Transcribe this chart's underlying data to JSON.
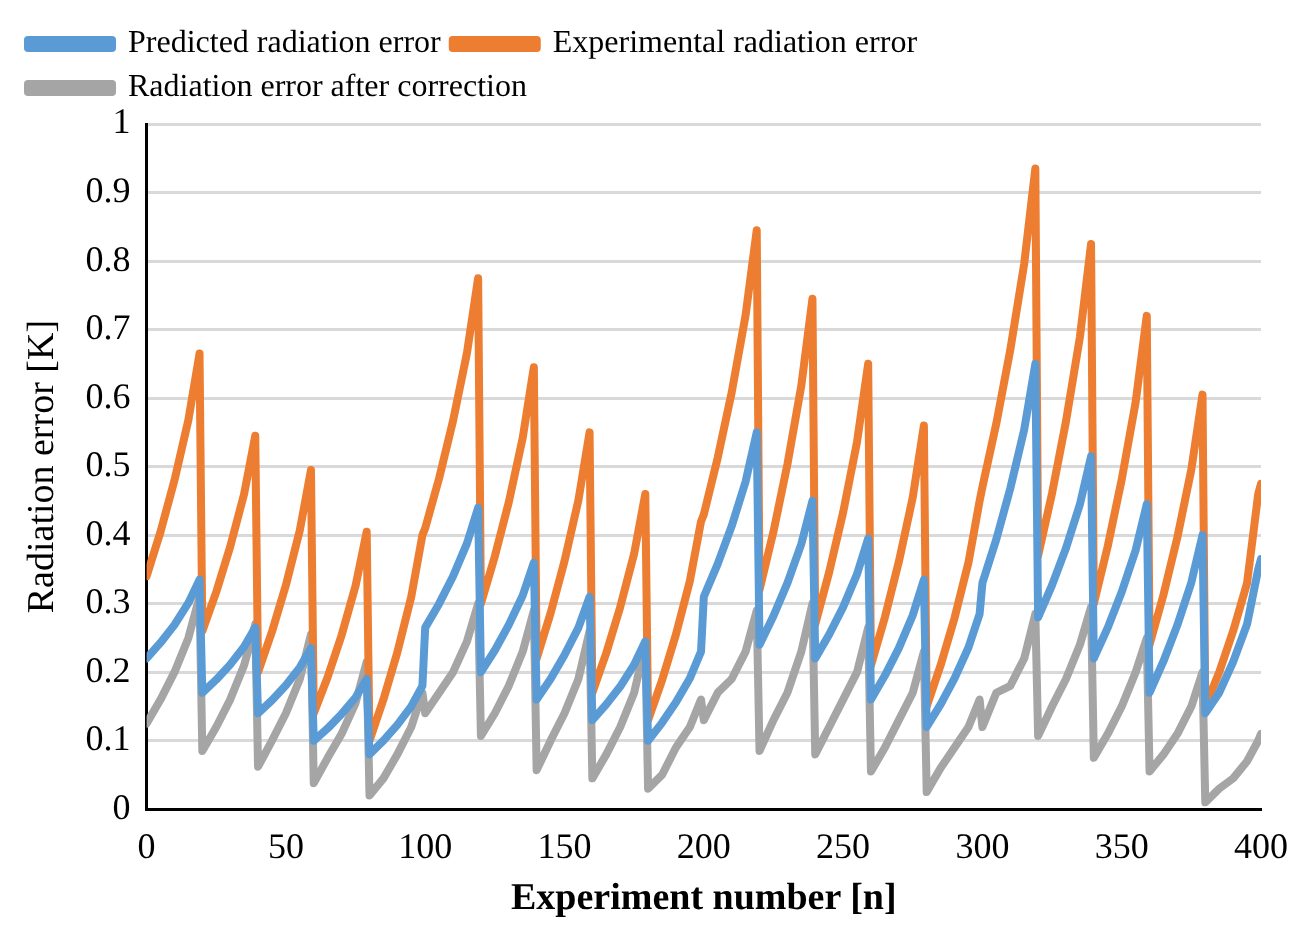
{
  "chart_data": {
    "type": "line",
    "xlabel": "Experiment number [n]",
    "ylabel": "Radiation error [K]",
    "x": [
      0,
      5,
      10,
      15,
      19,
      20,
      25,
      30,
      35,
      39,
      40,
      45,
      50,
      55,
      59,
      60,
      65,
      70,
      75,
      79,
      80,
      85,
      90,
      95,
      99,
      100,
      105,
      110,
      115,
      119,
      120,
      125,
      130,
      135,
      139,
      140,
      145,
      150,
      155,
      159,
      160,
      165,
      170,
      175,
      179,
      180,
      185,
      190,
      195,
      199,
      200,
      205,
      210,
      215,
      219,
      220,
      225,
      230,
      235,
      239,
      240,
      245,
      250,
      255,
      259,
      260,
      265,
      270,
      275,
      279,
      280,
      285,
      290,
      295,
      299,
      300,
      305,
      310,
      315,
      319,
      320,
      325,
      330,
      335,
      339,
      340,
      345,
      350,
      355,
      359,
      360,
      365,
      370,
      375,
      379,
      380,
      385,
      390,
      395,
      399,
      400
    ],
    "series": [
      {
        "name": "Predicted radiation error",
        "color": "#5b9bd5",
        "values": [
          0.22,
          0.243,
          0.269,
          0.301,
          0.335,
          0.17,
          0.189,
          0.211,
          0.237,
          0.265,
          0.14,
          0.159,
          0.181,
          0.207,
          0.235,
          0.1,
          0.118,
          0.139,
          0.163,
          0.19,
          0.08,
          0.1,
          0.123,
          0.15,
          0.18,
          0.265,
          0.3,
          0.34,
          0.388,
          0.44,
          0.2,
          0.232,
          0.269,
          0.312,
          0.36,
          0.16,
          0.19,
          0.225,
          0.265,
          0.31,
          0.13,
          0.153,
          0.179,
          0.211,
          0.245,
          0.1,
          0.126,
          0.156,
          0.191,
          0.23,
          0.31,
          0.358,
          0.413,
          0.478,
          0.55,
          0.24,
          0.282,
          0.33,
          0.387,
          0.45,
          0.22,
          0.255,
          0.295,
          0.343,
          0.395,
          0.16,
          0.195,
          0.235,
          0.283,
          0.335,
          0.12,
          0.153,
          0.191,
          0.236,
          0.285,
          0.33,
          0.394,
          0.468,
          0.554,
          0.65,
          0.28,
          0.327,
          0.381,
          0.445,
          0.515,
          0.22,
          0.265,
          0.317,
          0.378,
          0.445,
          0.17,
          0.216,
          0.269,
          0.331,
          0.4,
          0.14,
          0.17,
          0.215,
          0.27,
          0.35,
          0.365
        ]
      },
      {
        "name": "Experimental radiation error",
        "color": "#ed7d31",
        "values": [
          0.34,
          0.405,
          0.48,
          0.568,
          0.665,
          0.26,
          0.317,
          0.383,
          0.46,
          0.545,
          0.2,
          0.259,
          0.327,
          0.407,
          0.495,
          0.14,
          0.193,
          0.254,
          0.326,
          0.405,
          0.1,
          0.16,
          0.229,
          0.31,
          0.4,
          0.41,
          0.483,
          0.567,
          0.666,
          0.775,
          0.3,
          0.369,
          0.448,
          0.542,
          0.645,
          0.22,
          0.286,
          0.362,
          0.451,
          0.55,
          0.17,
          0.228,
          0.295,
          0.373,
          0.46,
          0.13,
          0.188,
          0.255,
          0.333,
          0.42,
          0.43,
          0.513,
          0.608,
          0.721,
          0.845,
          0.32,
          0.405,
          0.503,
          0.618,
          0.745,
          0.27,
          0.346,
          0.433,
          0.536,
          0.65,
          0.21,
          0.28,
          0.361,
          0.455,
          0.56,
          0.15,
          0.21,
          0.279,
          0.36,
          0.45,
          0.47,
          0.563,
          0.67,
          0.796,
          0.935,
          0.37,
          0.461,
          0.566,
          0.689,
          0.825,
          0.3,
          0.384,
          0.481,
          0.594,
          0.72,
          0.24,
          0.313,
          0.397,
          0.496,
          0.605,
          0.15,
          0.2,
          0.26,
          0.33,
          0.46,
          0.475
        ]
      },
      {
        "name": "Radiation error after correction",
        "color": "#a5a5a5",
        "values": [
          0.125,
          0.16,
          0.2,
          0.25,
          0.31,
          0.085,
          0.12,
          0.16,
          0.21,
          0.27,
          0.062,
          0.1,
          0.14,
          0.19,
          0.255,
          0.038,
          0.075,
          0.11,
          0.155,
          0.215,
          0.02,
          0.045,
          0.08,
          0.12,
          0.17,
          0.14,
          0.17,
          0.2,
          0.245,
          0.3,
          0.107,
          0.14,
          0.18,
          0.23,
          0.29,
          0.057,
          0.1,
          0.14,
          0.19,
          0.26,
          0.045,
          0.08,
          0.12,
          0.17,
          0.24,
          0.03,
          0.05,
          0.09,
          0.12,
          0.16,
          0.13,
          0.17,
          0.19,
          0.23,
          0.29,
          0.085,
          0.13,
          0.17,
          0.23,
          0.3,
          0.08,
          0.12,
          0.16,
          0.2,
          0.265,
          0.055,
          0.09,
          0.13,
          0.17,
          0.23,
          0.025,
          0.06,
          0.09,
          0.12,
          0.16,
          0.12,
          0.17,
          0.18,
          0.22,
          0.285,
          0.107,
          0.15,
          0.19,
          0.24,
          0.295,
          0.075,
          0.11,
          0.15,
          0.2,
          0.25,
          0.055,
          0.08,
          0.11,
          0.15,
          0.2,
          0.01,
          0.03,
          0.045,
          0.07,
          0.1,
          0.11
        ]
      }
    ],
    "xlim": [
      0,
      400
    ],
    "xticks": [
      0,
      50,
      100,
      150,
      200,
      250,
      300,
      350,
      400
    ],
    "ylim": [
      0,
      1
    ],
    "yticks": [
      0,
      0.1,
      0.2,
      0.3,
      0.4,
      0.5,
      0.6,
      0.7,
      0.8,
      0.9,
      1
    ],
    "grid": "y",
    "legend": "top left",
    "marker": "none",
    "line_style": "solid"
  }
}
